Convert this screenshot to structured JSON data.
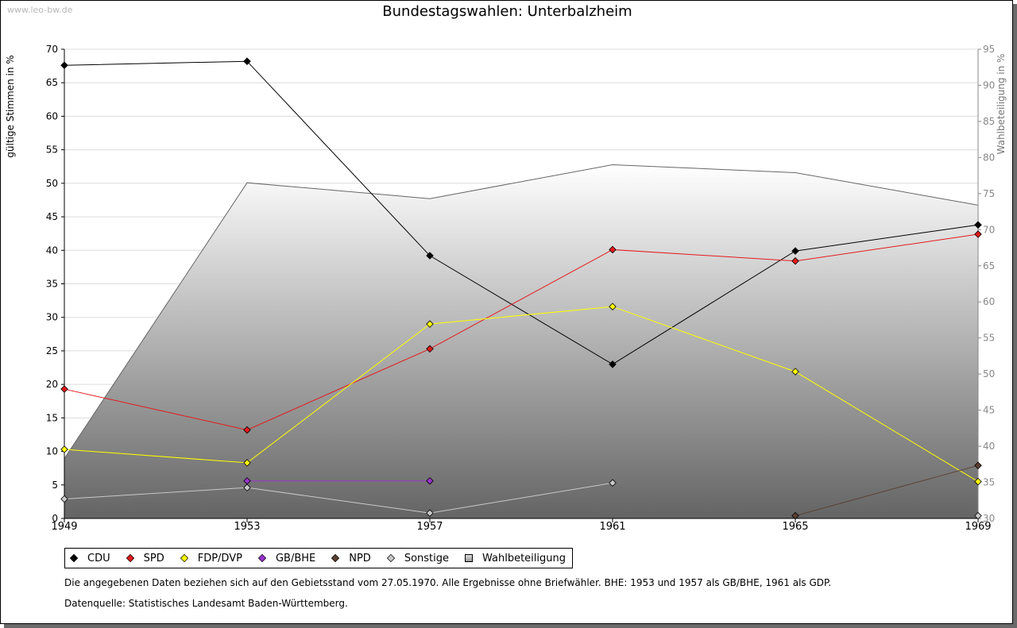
{
  "watermark": "www.leo-bw.de",
  "notes": {
    "areas": "Die angegebenen Daten beziehen sich auf den Gebietsstand vom 27.05.1970. Alle Ergebnisse ohne Briefwähler. BHE: 1953 und 1957 als GB/BHE, 1961 als GDP.",
    "source": "Datenquelle: Statistisches Landesamt Baden-Württemberg."
  },
  "chart_data": {
    "type": "line",
    "title": "Bundestagswahlen: Unterbalzheim",
    "xlabel": "",
    "ylabel": "gültige Stimmen in %",
    "y2label": "Wahlbeteiligung in %",
    "categories": [
      "1949",
      "1953",
      "1957",
      "1961",
      "1965",
      "1969"
    ],
    "ylim": [
      0,
      70
    ],
    "yticks": [
      0,
      5,
      10,
      15,
      20,
      25,
      30,
      35,
      40,
      45,
      50,
      55,
      60,
      65,
      70
    ],
    "y2lim": [
      30,
      95
    ],
    "y2ticks": [
      30,
      35,
      40,
      45,
      50,
      55,
      60,
      65,
      70,
      75,
      80,
      85,
      90,
      95
    ],
    "grid": true,
    "legend_position": "bottom",
    "area_series": {
      "name": "Wahlbeteiligung",
      "axis": "right",
      "color": "#666666",
      "values": [
        38.3,
        76.5,
        74.3,
        79.0,
        77.9,
        73.4
      ]
    },
    "series": [
      {
        "name": "CDU",
        "color": "#000000",
        "values": [
          67.6,
          68.2,
          39.2,
          23.0,
          39.9,
          43.8
        ]
      },
      {
        "name": "SPD",
        "color": "#e41a1c",
        "values": [
          19.3,
          13.2,
          25.3,
          40.1,
          38.4,
          42.4
        ]
      },
      {
        "name": "FDP/DVP",
        "color": "#ffff00",
        "values": [
          10.3,
          8.3,
          29.0,
          31.6,
          21.9,
          5.5
        ]
      },
      {
        "name": "GB/BHE",
        "color": "#9933cc",
        "values": [
          null,
          5.6,
          5.6,
          null,
          null,
          null
        ]
      },
      {
        "name": "NPD",
        "color": "#5c4033",
        "values": [
          null,
          null,
          null,
          null,
          0.4,
          7.9
        ]
      },
      {
        "name": "Sonstige",
        "color": "#c8c8c8",
        "values": [
          2.9,
          4.6,
          0.8,
          5.3,
          null,
          0.4
        ]
      }
    ]
  }
}
